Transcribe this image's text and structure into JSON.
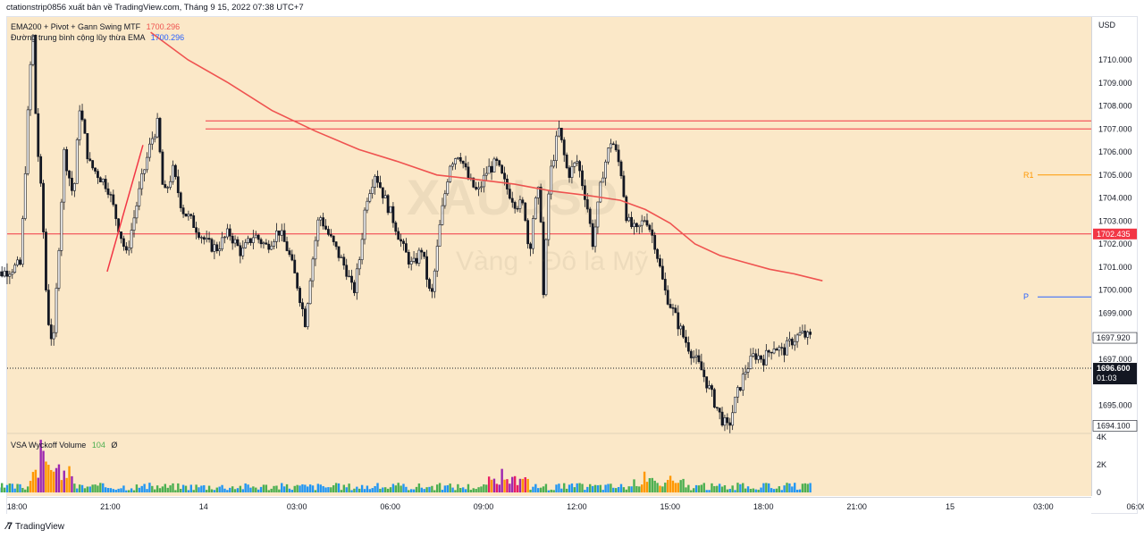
{
  "header": {
    "publisher": "ctationstrip0856 xuất bản về TradingView.com, Tháng 9 15, 2022 07:38 UTC+7"
  },
  "legend": {
    "line1_name": "EMA200 + Pivot + Gann Swing MTF",
    "line1_value": "1700.296",
    "line2_name": "Đường trung bình cộng lũy thừa EMA",
    "line2_value": "1700.296",
    "volume_name": "VSA Wyckoff Volume",
    "volume_value": "104",
    "volume_extra": "Ø"
  },
  "watermark": {
    "symbol": "XAUUSD",
    "sub": "Vàng · Đô la Mỹ"
  },
  "footer": {
    "brand": "TradingView"
  },
  "chart_data": {
    "type": "line",
    "currency": "USD",
    "y_ticks": [
      1710.0,
      1709.0,
      1708.0,
      1707.0,
      1706.0,
      1705.0,
      1704.0,
      1703.0,
      1702.0,
      1701.0,
      1700.0,
      1699.0,
      1697.0,
      1695.0
    ],
    "y_tick_labels": [
      "1710.000",
      "1709.000",
      "1708.000",
      "1707.000",
      "1706.000",
      "1705.000",
      "1704.000",
      "1703.000",
      "1702.000",
      "1701.000",
      "1700.000",
      "1699.000",
      "1697.000",
      "1695.000"
    ],
    "ylim": [
      1693.6,
      1711.3
    ],
    "x_tick_labels": [
      "18:00",
      "21:00",
      "14",
      "03:00",
      "06:00",
      "09:00",
      "12:00",
      "15:00",
      "18:00",
      "21:00",
      "15",
      "03:00",
      "06:00"
    ],
    "x_tick_hours": [
      0,
      3,
      6,
      9,
      12,
      15,
      18,
      21,
      24,
      27,
      30,
      33,
      36
    ],
    "price_path": [
      [
        -0.9,
        1700.5
      ],
      [
        -0.3,
        1700.8
      ],
      [
        0.2,
        1701.1
      ],
      [
        0.5,
        1709.5
      ],
      [
        0.6,
        1711.0
      ],
      [
        0.7,
        1707.0
      ],
      [
        0.9,
        1703.5
      ],
      [
        1.05,
        1699.0
      ],
      [
        1.25,
        1697.5
      ],
      [
        1.4,
        1701.2
      ],
      [
        1.6,
        1706.0
      ],
      [
        1.9,
        1704.0
      ],
      [
        2.1,
        1708.0
      ],
      [
        2.4,
        1705.5
      ],
      [
        2.7,
        1705.0
      ],
      [
        3.0,
        1704.5
      ],
      [
        3.3,
        1703.0
      ],
      [
        3.6,
        1701.5
      ],
      [
        3.9,
        1703.5
      ],
      [
        4.1,
        1704.8
      ],
      [
        4.4,
        1706.5
      ],
      [
        4.6,
        1707.2
      ],
      [
        4.8,
        1704.0
      ],
      [
        5.1,
        1705.2
      ],
      [
        5.4,
        1703.5
      ],
      [
        5.8,
        1702.8
      ],
      [
        6.2,
        1702.0
      ],
      [
        6.5,
        1701.8
      ],
      [
        6.9,
        1702.5
      ],
      [
        7.3,
        1701.6
      ],
      [
        7.7,
        1702.4
      ],
      [
        8.1,
        1701.9
      ],
      [
        8.5,
        1702.6
      ],
      [
        8.8,
        1701.7
      ],
      [
        9.1,
        1700.2
      ],
      [
        9.35,
        1698.6
      ],
      [
        9.5,
        1700.5
      ],
      [
        9.8,
        1703.3
      ],
      [
        10.1,
        1702.4
      ],
      [
        10.4,
        1701.6
      ],
      [
        10.7,
        1700.8
      ],
      [
        10.9,
        1699.8
      ],
      [
        11.1,
        1701.4
      ],
      [
        11.3,
        1703.9
      ],
      [
        11.6,
        1705.1
      ],
      [
        11.9,
        1704.0
      ],
      [
        12.2,
        1703.0
      ],
      [
        12.5,
        1701.8
      ],
      [
        12.8,
        1701.0
      ],
      [
        13.1,
        1701.8
      ],
      [
        13.4,
        1699.5
      ],
      [
        13.7,
        1703.0
      ],
      [
        14.0,
        1705.5
      ],
      [
        14.3,
        1706.0
      ],
      [
        14.6,
        1704.8
      ],
      [
        14.9,
        1704.2
      ],
      [
        15.2,
        1705.2
      ],
      [
        15.5,
        1705.5
      ],
      [
        15.8,
        1704.5
      ],
      [
        16.1,
        1703.8
      ],
      [
        16.4,
        1703.6
      ],
      [
        16.55,
        1701.5
      ],
      [
        16.7,
        1703.5
      ],
      [
        16.9,
        1704.5
      ],
      [
        17.0,
        1699.5
      ],
      [
        17.2,
        1704.8
      ],
      [
        17.5,
        1707.0
      ],
      [
        17.8,
        1705.0
      ],
      [
        18.1,
        1705.6
      ],
      [
        18.4,
        1703.8
      ],
      [
        18.6,
        1702.0
      ],
      [
        18.9,
        1705.0
      ],
      [
        19.2,
        1706.6
      ],
      [
        19.5,
        1705.2
      ],
      [
        19.7,
        1703.0
      ],
      [
        20.0,
        1702.5
      ],
      [
        20.3,
        1703.2
      ],
      [
        20.6,
        1702.0
      ],
      [
        20.9,
        1700.0
      ],
      [
        21.2,
        1699.0
      ],
      [
        21.5,
        1698.0
      ],
      [
        21.8,
        1697.2
      ],
      [
        22.1,
        1696.5
      ],
      [
        22.4,
        1695.5
      ],
      [
        22.7,
        1694.5
      ],
      [
        22.95,
        1693.95
      ],
      [
        23.2,
        1695.3
      ],
      [
        23.5,
        1696.5
      ],
      [
        23.8,
        1697.2
      ],
      [
        24.1,
        1697.0
      ],
      [
        24.4,
        1697.6
      ],
      [
        24.7,
        1697.3
      ],
      [
        25.0,
        1697.8
      ],
      [
        25.3,
        1698.1
      ],
      [
        25.55,
        1697.92
      ]
    ],
    "price_path_x_unit": "hours from first 18:00 tick",
    "series": [
      {
        "name": "EMA200 + Pivot + Gann Swing MTF",
        "color": "#ef5350",
        "x": [
          4.3,
          5.5,
          6.8,
          8.2,
          9.6,
          11.0,
          12.2,
          13.5,
          14.8,
          16.0,
          17.2,
          18.4,
          19.4,
          20.2,
          21.0,
          21.8,
          22.6,
          23.4,
          24.2,
          25.0,
          25.9
        ],
        "values": [
          1711.2,
          1710.0,
          1709.0,
          1707.8,
          1706.9,
          1706.1,
          1705.6,
          1705.0,
          1704.8,
          1704.6,
          1704.3,
          1704.1,
          1703.9,
          1703.5,
          1702.9,
          1702.0,
          1701.5,
          1701.2,
          1700.9,
          1700.7,
          1700.4
        ]
      }
    ],
    "gann_swing": {
      "x": [
        2.9,
        4.05
      ],
      "values": [
        1700.8,
        1706.3
      ]
    },
    "horizontal_lines": [
      {
        "value": 1707.35,
        "color": "#f23645"
      },
      {
        "value": 1707.0,
        "color": "#f23645"
      },
      {
        "value": 1702.435,
        "color": "#f23645"
      },
      {
        "value": 1696.6,
        "color": "#131722",
        "style": "dotted"
      }
    ],
    "pivot_levels": [
      {
        "label": "R1",
        "value": 1705.0,
        "color": "#ff9800"
      },
      {
        "label": "P",
        "value": 1699.7,
        "color": "#2962ff"
      }
    ],
    "price_tags": [
      {
        "label": "1702.435",
        "value": 1702.435,
        "bg": "#f23645",
        "fg": "#ffffff"
      },
      {
        "label": "1697.920",
        "value": 1697.92,
        "bg": "#ffffff",
        "fg": "#131722"
      },
      {
        "label": "1696.600",
        "sub": "01:03",
        "value": 1696.6,
        "bg": "#131722",
        "fg": "#ffffff"
      },
      {
        "label": "1694.100",
        "value": 1694.1,
        "bg": "#ffffff",
        "fg": "#131722"
      }
    ],
    "volume": {
      "axis_labels": [
        "4K",
        "2K",
        "0"
      ],
      "axis_values": [
        4000,
        2000,
        0
      ],
      "spikes": [
        [
          0.75,
          3800,
          "#9c27b0"
        ],
        [
          0.85,
          3000,
          "#9c27b0"
        ],
        [
          1.0,
          2000,
          "#ff9800"
        ],
        [
          1.2,
          1500,
          "#ff9800"
        ],
        [
          15.6,
          1700,
          "#9c27b0"
        ],
        [
          20.2,
          1500,
          "#ff9800"
        ],
        [
          21.0,
          1200,
          "#ff9800"
        ]
      ],
      "colors": [
        "#2196f3",
        "#4caf50",
        "#ff9800",
        "#9c27b0",
        "#e91e63"
      ]
    }
  }
}
